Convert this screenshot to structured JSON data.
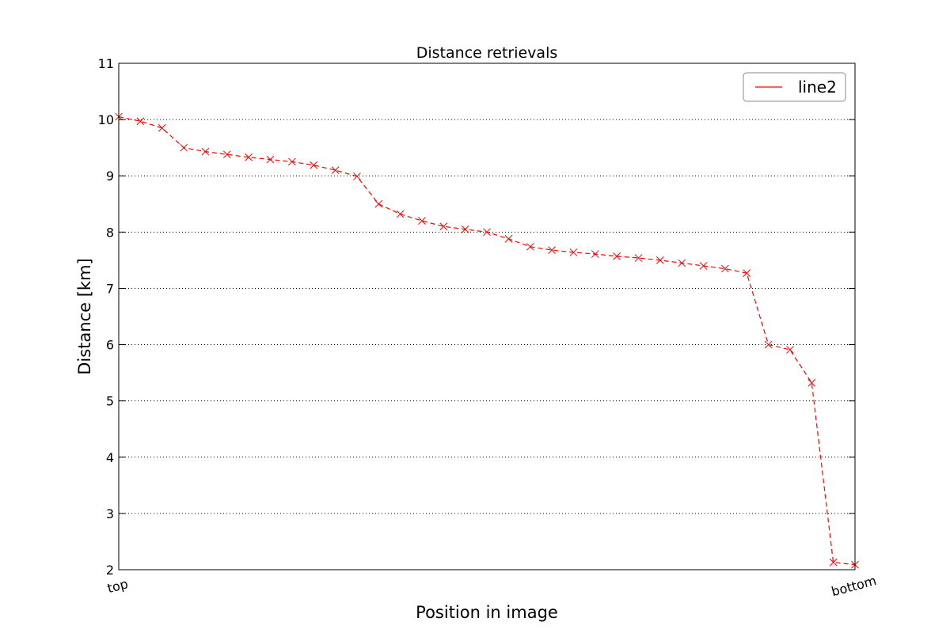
{
  "chart_data": {
    "type": "line",
    "title": "Distance retrievals",
    "xlabel": "Position in image",
    "ylabel": "Distance [km]",
    "x_tick_labels": [
      {
        "label": "top",
        "x": 0
      },
      {
        "label": "bottom",
        "x": 34
      }
    ],
    "xlim": [
      0,
      34
    ],
    "ylim": [
      2,
      11
    ],
    "y_ticks": [
      2,
      3,
      4,
      5,
      6,
      7,
      8,
      9,
      10,
      11
    ],
    "grid": "horizontal-dotted",
    "legend_placement": "top-right",
    "series": [
      {
        "name": "line2",
        "color": "#ff0000",
        "line_style": "dashed",
        "marker": "x",
        "x": [
          0,
          1,
          2,
          3,
          4,
          5,
          6,
          7,
          8,
          9,
          10,
          11,
          12,
          13,
          14,
          15,
          16,
          17,
          18,
          19,
          20,
          21,
          22,
          23,
          24,
          25,
          26,
          27,
          28,
          29,
          30,
          31,
          32,
          33,
          34
        ],
        "values": [
          10.05,
          9.97,
          9.85,
          9.5,
          9.43,
          9.38,
          9.33,
          9.29,
          9.25,
          9.19,
          9.1,
          8.99,
          8.5,
          8.32,
          8.2,
          8.1,
          8.05,
          8.0,
          7.88,
          7.74,
          7.68,
          7.64,
          7.61,
          7.57,
          7.54,
          7.5,
          7.45,
          7.4,
          7.35,
          7.27,
          6.0,
          5.91,
          5.32,
          2.13,
          2.09
        ]
      }
    ]
  }
}
